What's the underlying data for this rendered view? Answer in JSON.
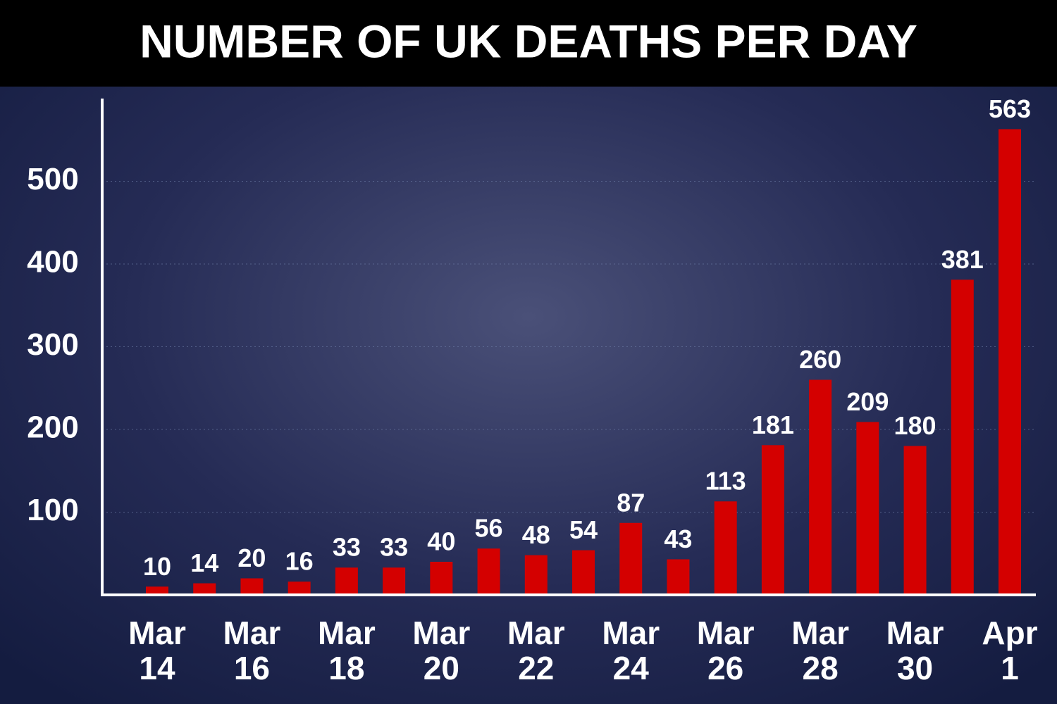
{
  "chart_data": {
    "type": "bar",
    "title": "NUMBER OF UK DEATHS PER DAY",
    "categories": [
      "Mar 14",
      null,
      "Mar 16",
      null,
      "Mar 18",
      null,
      "Mar 20",
      null,
      "Mar 22",
      null,
      "Mar 24",
      null,
      "Mar 26",
      null,
      "Mar 28",
      null,
      "Mar 30",
      null,
      "Apr 1"
    ],
    "values": [
      10,
      14,
      20,
      16,
      33,
      33,
      40,
      56,
      48,
      54,
      87,
      43,
      113,
      181,
      260,
      209,
      180,
      381,
      563
    ],
    "color": "#d40000",
    "ylim": [
      0,
      600
    ],
    "yticks": [
      100,
      200,
      300,
      400,
      500
    ],
    "grid": true
  }
}
